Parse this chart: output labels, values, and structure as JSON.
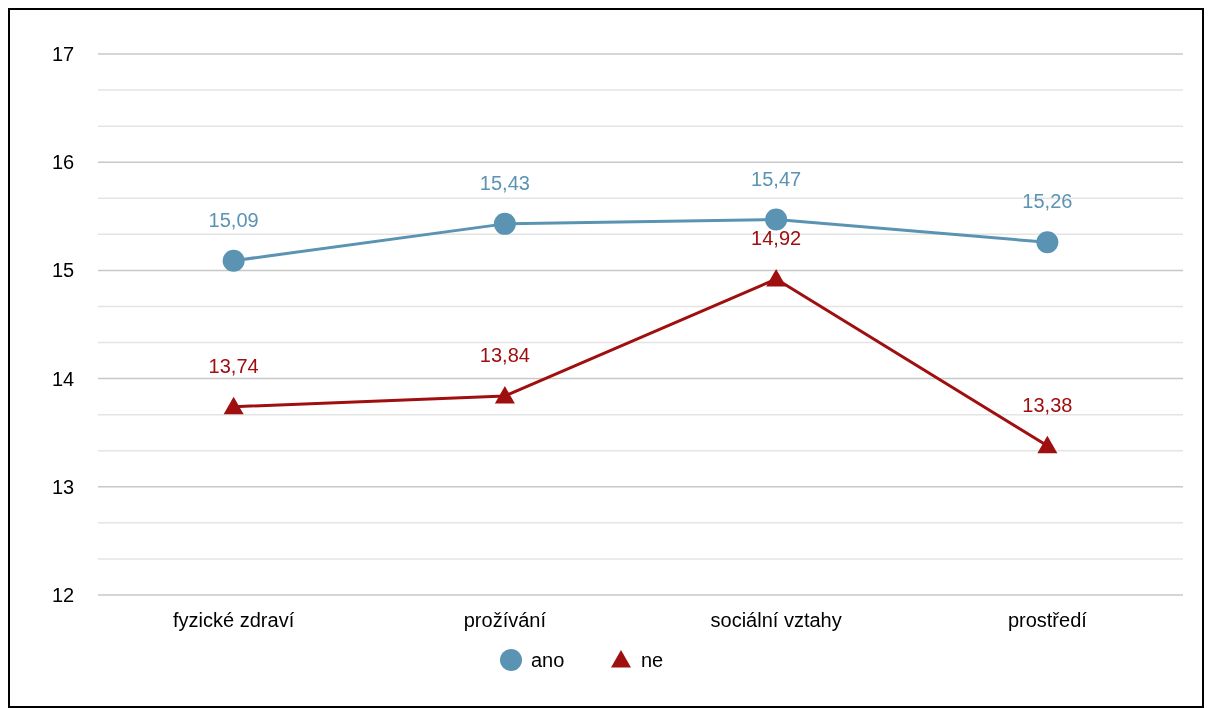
{
  "chart_data": {
    "type": "line",
    "categories": [
      "fyzické zdraví",
      "prožívání",
      "sociální vztahy",
      "prostředí"
    ],
    "series": [
      {
        "name": "ano",
        "color": "#5b93b3",
        "marker": "circle",
        "values": [
          15.09,
          15.43,
          15.47,
          15.26
        ],
        "value_labels": [
          "15,09",
          "15,43",
          "15,47",
          "15,26"
        ]
      },
      {
        "name": "ne",
        "color": "#a00f0f",
        "marker": "triangle",
        "values": [
          13.74,
          13.84,
          14.92,
          13.38
        ],
        "value_labels": [
          "13,74",
          "13,84",
          "14,92",
          "13,38"
        ]
      }
    ],
    "ylim": [
      12,
      17
    ],
    "yticks": [
      12,
      {
        "value": 12.333,
        "label": null
      },
      {
        "value": 12.667,
        "label": null
      },
      13,
      {
        "value": 13.333,
        "label": null
      },
      {
        "value": 13.667,
        "label": null
      },
      14,
      {
        "value": 14.333,
        "label": null
      },
      {
        "value": 14.667,
        "label": null
      },
      15,
      {
        "value": 15.333,
        "label": null
      },
      {
        "value": 15.667,
        "label": null
      },
      16,
      {
        "value": 16.333,
        "label": null
      },
      {
        "value": 16.667,
        "label": null
      },
      17
    ],
    "grid": true,
    "legend": "bottom"
  }
}
